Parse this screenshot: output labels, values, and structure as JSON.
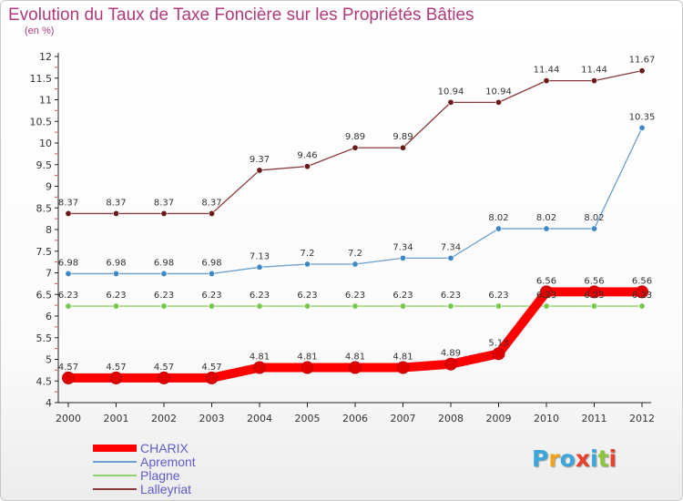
{
  "title": "Evolution du Taux de Taxe Foncière sur les Propriétés Bâties",
  "subtitle": "(en %)",
  "logo": {
    "text": "Proxiti",
    "letters": [
      {
        "ch": "P",
        "color": "#3ba6dc"
      },
      {
        "ch": "r",
        "color": "#f0a31c"
      },
      {
        "ch": "o",
        "color": "#3ba6dc"
      },
      {
        "ch": "x",
        "color": "#e8402a"
      },
      {
        "ch": "i",
        "color": "#3ba6dc"
      },
      {
        "ch": "t",
        "color": "#8cc63f"
      },
      {
        "ch": "i",
        "color": "#e8402a"
      }
    ]
  },
  "chart_data": {
    "type": "line",
    "title": "Evolution du Taux de Taxe Foncière sur les Propriétés Bâties",
    "ylabel": "(en %)",
    "xlabel": "",
    "x": [
      "2000",
      "2001",
      "2002",
      "2003",
      "2004",
      "2005",
      "2006",
      "2007",
      "2008",
      "2009",
      "2010",
      "2011",
      "2012"
    ],
    "ylim": [
      4,
      12
    ],
    "yticks": [
      "4",
      "4.5",
      "5",
      "5.5",
      "6",
      "6.5",
      "7",
      "7.5",
      "8",
      "8.5",
      "9",
      "9.5",
      "10",
      "10.5",
      "11",
      "11.5",
      "12"
    ],
    "grid": false,
    "legend_position": "bottom-left",
    "series": [
      {
        "name": "CHARIX",
        "color": "#ff0000",
        "point_color": "#e00000",
        "values": [
          4.57,
          4.57,
          4.57,
          4.57,
          4.81,
          4.81,
          4.81,
          4.81,
          4.89,
          5.13,
          6.56,
          6.56,
          6.56
        ],
        "labels": [
          "4.57",
          "4.57",
          "4.57",
          "4.57",
          "4.81",
          "4.81",
          "4.81",
          "4.81",
          "4.89",
          "5.13",
          "6.56",
          "6.56",
          "6.56"
        ]
      },
      {
        "name": "Apremont",
        "color": "#6aa0cf",
        "point_color": "#3f88c5",
        "values": [
          6.98,
          6.98,
          6.98,
          6.98,
          7.13,
          7.2,
          7.2,
          7.34,
          7.34,
          8.02,
          8.02,
          8.02,
          10.35
        ],
        "labels": [
          "6.98",
          "6.98",
          "6.98",
          "6.98",
          "7.13",
          "7.2",
          "7.2",
          "7.34",
          "7.34",
          "8.02",
          "8.02",
          "8.02",
          "10.35"
        ]
      },
      {
        "name": "Plagne",
        "color": "#8fd16a",
        "point_color": "#76c84d",
        "values": [
          6.23,
          6.23,
          6.23,
          6.23,
          6.23,
          6.23,
          6.23,
          6.23,
          6.23,
          6.23,
          6.23,
          6.23,
          6.23
        ],
        "labels": [
          "6.23",
          "6.23",
          "6.23",
          "6.23",
          "6.23",
          "6.23",
          "6.23",
          "6.23",
          "6.23",
          "6.23",
          "6.23",
          "6.23",
          "6.23"
        ]
      },
      {
        "name": "Lalleyriat",
        "color": "#8a3a3a",
        "point_color": "#6b1a1a",
        "values": [
          8.37,
          8.37,
          8.37,
          8.37,
          9.37,
          9.46,
          9.89,
          9.89,
          10.94,
          10.94,
          11.44,
          11.44,
          11.67
        ],
        "labels": [
          "8.37",
          "8.37",
          "8.37",
          "8.37",
          "9.37",
          "9.46",
          "9.89",
          "9.89",
          "10.94",
          "10.94",
          "11.44",
          "11.44",
          "11.67"
        ]
      }
    ]
  }
}
